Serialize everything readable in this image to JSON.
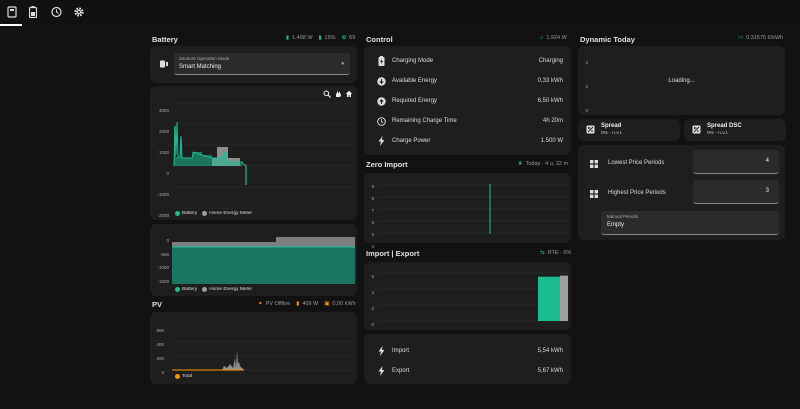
{
  "colors": {
    "accent": "#1dbd94",
    "grey": "#9e9e9e",
    "orange": "#ff9800",
    "bg": "#121212",
    "card": "#1e1e1e"
  },
  "topbar": {
    "icons": [
      "battery-icon",
      "history-icon",
      "gear-icon"
    ]
  },
  "battery": {
    "title": "Battery",
    "meta": {
      "power": "1.498 W",
      "soc": "15%",
      "soh": "69"
    },
    "operation_mode": {
      "label": "Zendure Operation Mode",
      "value": "Smart Matching"
    },
    "chart1": {
      "y_ticks": [
        "3000",
        "2000",
        "1000",
        "0",
        "-1000",
        "-2000"
      ],
      "legend": [
        "Battery",
        "Home Energy Meter"
      ]
    },
    "chart2": {
      "y_ticks": [
        "0",
        "-500",
        "-1000",
        "-1500"
      ],
      "legend": [
        "Battery",
        "Home Energy Meter"
      ]
    }
  },
  "pv": {
    "title": "PV",
    "meta": {
      "status": "PV Offline",
      "power": "409 W",
      "energy": "0,00 kWh"
    },
    "chart": {
      "y_ticks": [
        "600",
        "400",
        "200",
        "0"
      ],
      "legend": [
        "Total"
      ]
    }
  },
  "control": {
    "title": "Control",
    "meta": "1.924 W",
    "rows": [
      {
        "icon": "battery-charging-icon",
        "label": "Charging Mode",
        "value": "Charging"
      },
      {
        "icon": "energy-available-icon",
        "label": "Available Energy",
        "value": "0,33 kWh"
      },
      {
        "icon": "energy-required-icon",
        "label": "Required Energy",
        "value": "6,50 kWh"
      },
      {
        "icon": "clock-icon",
        "label": "Remaining Charge Time",
        "value": "4h 20m"
      },
      {
        "icon": "flash-icon",
        "label": "Charge Power",
        "value": "1.500 W"
      }
    ]
  },
  "zero_import": {
    "title": "Zero Import",
    "meta": "Today · 4 u, 22 m",
    "y_ticks": [
      "9",
      "8",
      "7",
      "6",
      "5",
      "4"
    ]
  },
  "import_export": {
    "title": "Import | Export",
    "meta": "RTE · 0%",
    "y_ticks": [
      "6",
      "4",
      "2",
      "0"
    ],
    "chart_data": {
      "type": "bar",
      "series": [
        {
          "values": [
            5.54
          ]
        },
        {
          "values": [
            5.67
          ]
        }
      ],
      "ylim": [
        0,
        6.5
      ]
    },
    "rows": [
      {
        "icon": "import-icon",
        "label": "Import",
        "value": "5,54 kWh"
      },
      {
        "icon": "export-icon",
        "label": "Export",
        "value": "5,67 kWh"
      }
    ]
  },
  "dynamic": {
    "title": "Dynamic Today",
    "meta": "0.31575 €/kWh",
    "y_ticks": [
      "4",
      "2",
      "0"
    ],
    "loading": "Loading...",
    "spread": {
      "title": "Spread",
      "value": "0% - n.v.t."
    },
    "spread_dsc": {
      "title": "Spread DSC",
      "value": "0% - n.v.t."
    },
    "lowest": {
      "label": "Lowest Price Periods",
      "value": "4"
    },
    "highest": {
      "label": "Highest Price Periods",
      "value": "3"
    },
    "manual": {
      "label": "Manual Periods",
      "value": "Empty"
    }
  }
}
